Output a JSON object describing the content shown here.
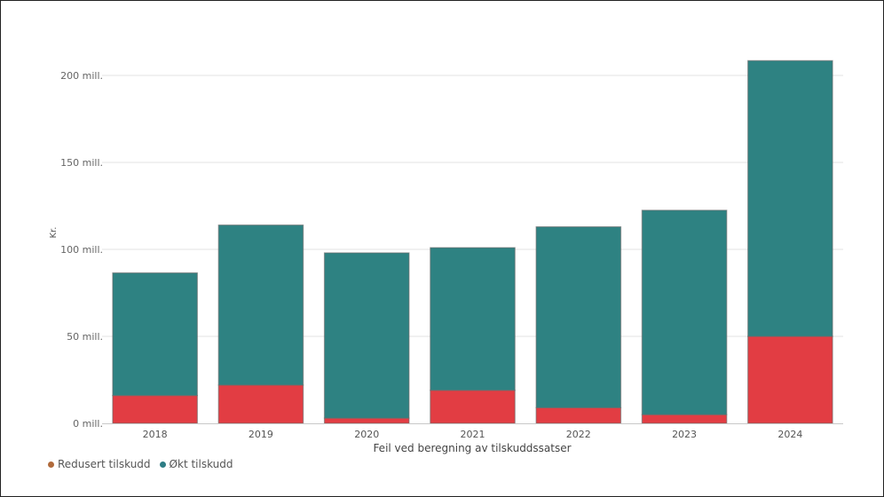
{
  "chart_data": {
    "type": "bar",
    "stacked": true,
    "categories": [
      "2018",
      "2019",
      "2020",
      "2021",
      "2022",
      "2023",
      "2024"
    ],
    "series": [
      {
        "name": "Redusert tilskudd",
        "color": "#e23d43",
        "legend_color": "#b06a3b",
        "values": [
          16,
          22,
          3,
          19,
          9,
          5,
          50
        ]
      },
      {
        "name": "Økt tilskudd",
        "color": "#2e8282",
        "legend_color": "#2e7d85",
        "values": [
          70.5,
          92,
          95,
          82,
          104,
          117.5,
          158.5
        ]
      }
    ],
    "xlabel": "Feil ved beregning av tilskuddssatser",
    "ylabel": "Kr.",
    "ylim": [
      0,
      200
    ],
    "yticks": [
      0,
      50,
      100,
      150,
      200
    ],
    "ytick_labels": [
      "0 mill.",
      "50 mill.",
      "100 mill.",
      "150 mill.",
      "200 mill."
    ],
    "grid": true,
    "legend_position": "bottom-left"
  }
}
